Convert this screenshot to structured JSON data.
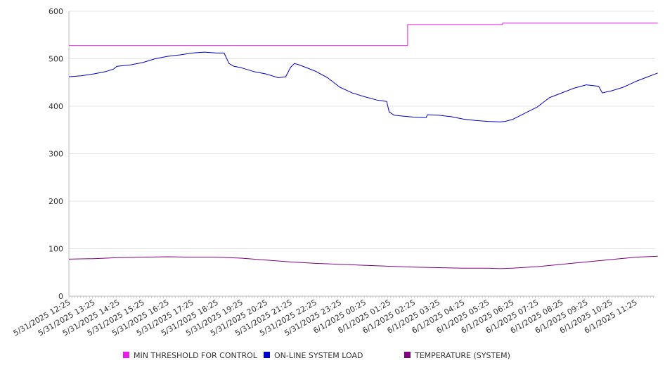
{
  "chart_data": {
    "type": "line",
    "ylim": [
      0,
      600
    ],
    "yticks": [
      0,
      100,
      200,
      300,
      400,
      500,
      600
    ],
    "grid": "horizontal",
    "legend_position": "bottom",
    "x_labels": [
      "5/31/2025 12:25",
      "5/31/2025 13:25",
      "5/31/2025 14:25",
      "5/31/2025 15:25",
      "5/31/2025 16:25",
      "5/31/2025 17:25",
      "5/31/2025 18:25",
      "5/31/2025 19:25",
      "5/31/2025 20:25",
      "5/31/2025 21:25",
      "5/31/2025 22:25",
      "5/31/2025 23:25",
      "6/1/2025 00:25",
      "6/1/2025 01:25",
      "6/1/2025 02:25",
      "6/1/2025 03:25",
      "6/1/2025 04:25",
      "6/1/2025 05:25",
      "6/1/2025 06:25",
      "6/1/2025 07:25",
      "6/1/2025 08:25",
      "6/1/2025 09:25",
      "6/1/2025 10:25",
      "6/1/2025 11:25"
    ],
    "series": [
      {
        "name": "MIN THRESHOLD FOR CONTROL",
        "color": "#e81ee8",
        "x": [
          0,
          13.75,
          13.75,
          14.0,
          17.6,
          17.6,
          23.9
        ],
        "values": [
          528,
          528,
          572,
          572,
          572,
          575,
          575
        ]
      },
      {
        "name": "ON-LINE SYSTEM LOAD",
        "color": "#0000cc",
        "x": [
          0,
          0.5,
          1.0,
          1.5,
          1.8,
          1.95,
          2.5,
          3.0,
          3.5,
          4.0,
          4.5,
          5.0,
          5.5,
          6.0,
          6.3,
          6.5,
          6.7,
          7.0,
          7.5,
          8.0,
          8.5,
          8.8,
          9.0,
          9.15,
          9.3,
          9.6,
          10.0,
          10.5,
          11.0,
          11.5,
          12.0,
          12.5,
          12.9,
          13.0,
          13.2,
          13.6,
          14.0,
          14.5,
          14.55,
          15.0,
          15.5,
          16.0,
          16.5,
          17.0,
          17.5,
          17.7,
          18.0,
          18.5,
          19.0,
          19.5,
          20.0,
          20.5,
          21.0,
          21.5,
          21.65,
          21.8,
          22.0,
          22.5,
          23.0,
          23.5,
          23.9
        ],
        "values": [
          462,
          464,
          468,
          473,
          478,
          484,
          487,
          492,
          500,
          505,
          508,
          512,
          514,
          512,
          512,
          490,
          484,
          481,
          473,
          468,
          460,
          462,
          482,
          490,
          488,
          482,
          474,
          460,
          440,
          428,
          420,
          413,
          410,
          388,
          381,
          379,
          377,
          376,
          382,
          381,
          378,
          373,
          370,
          368,
          367,
          368,
          372,
          385,
          398,
          418,
          428,
          438,
          445,
          442,
          428,
          430,
          432,
          440,
          452,
          462,
          470
        ]
      },
      {
        "name": "TEMPERATURE (SYSTEM)",
        "color": "#800080",
        "x": [
          0,
          1.0,
          2.0,
          3.0,
          4.0,
          5.0,
          6.0,
          7.0,
          8.0,
          9.0,
          10.0,
          11.0,
          12.0,
          13.0,
          14.0,
          15.0,
          16.0,
          17.0,
          17.5,
          18.0,
          19.0,
          20.0,
          21.0,
          22.0,
          23.0,
          23.9
        ],
        "values": [
          78,
          79,
          81,
          82,
          83,
          82,
          82,
          80,
          76,
          72,
          69,
          67,
          65,
          63,
          61,
          60,
          59,
          59,
          58,
          59,
          62,
          67,
          72,
          77,
          82,
          84
        ]
      }
    ]
  }
}
